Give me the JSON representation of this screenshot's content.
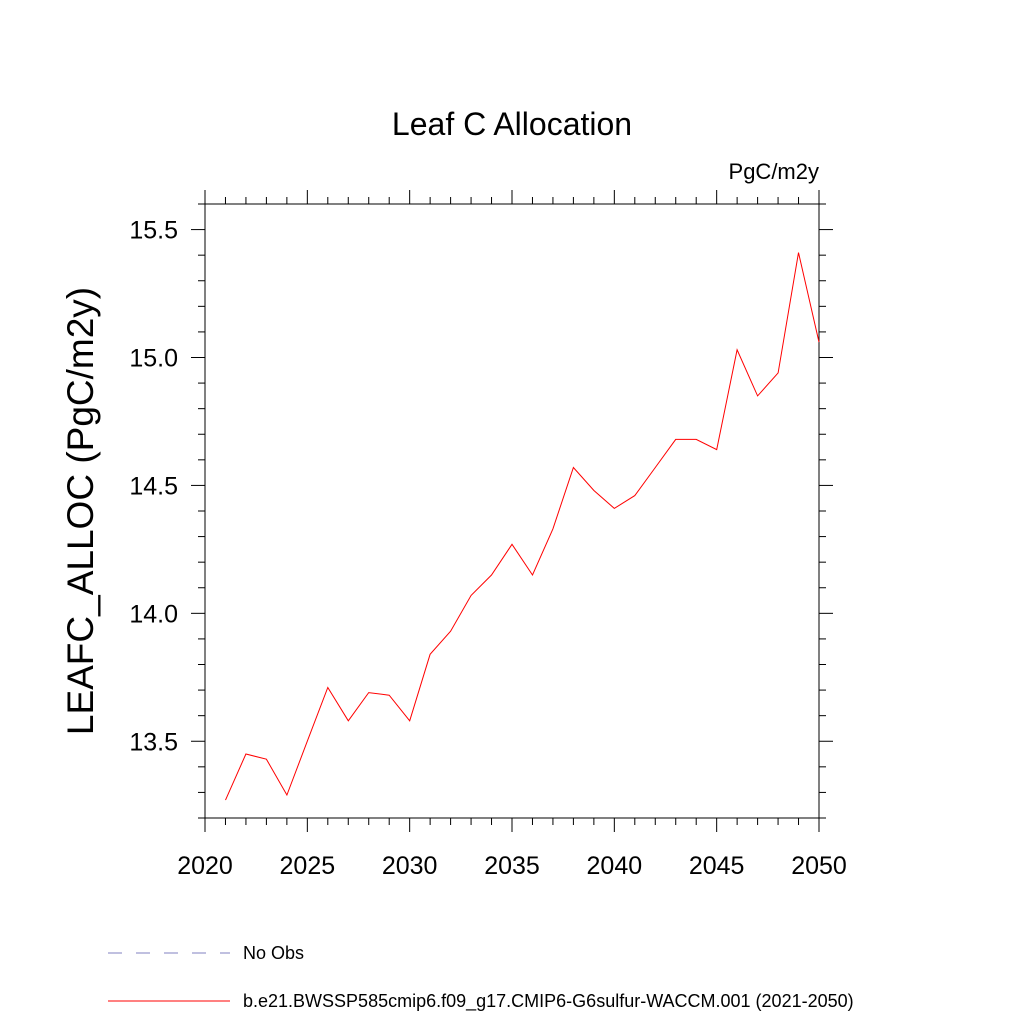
{
  "chart_data": {
    "type": "line",
    "title": "Leaf C Allocation",
    "units": "PgC/m2y",
    "xlabel": "",
    "ylabel": "LEAFC_ALLOC  (PgC/m2y)",
    "xlim": [
      2020,
      2050
    ],
    "ylim": [
      13.2,
      15.6
    ],
    "xticks": [
      2020,
      2025,
      2030,
      2035,
      2040,
      2045,
      2050
    ],
    "yticks": [
      13.5,
      14.0,
      14.5,
      15.0,
      15.5
    ],
    "ytick_labels": [
      "13.5",
      "14.0",
      "14.5",
      "15.0",
      "15.5"
    ],
    "grid": false,
    "series": [
      {
        "name": "b.e21.BWSSP585cmip6.f09_g17.CMIP6-G6sulfur-WACCM.001 (2021-2050)",
        "color": "#ff0000",
        "x": [
          2021,
          2022,
          2023,
          2024,
          2025,
          2026,
          2027,
          2028,
          2029,
          2030,
          2031,
          2032,
          2033,
          2034,
          2035,
          2036,
          2037,
          2038,
          2039,
          2040,
          2041,
          2042,
          2043,
          2044,
          2045,
          2046,
          2047,
          2048,
          2049,
          2050
        ],
        "y": [
          13.27,
          13.45,
          13.43,
          13.29,
          13.5,
          13.71,
          13.58,
          13.69,
          13.68,
          13.58,
          13.84,
          13.93,
          14.07,
          14.15,
          14.27,
          14.15,
          14.33,
          14.57,
          14.48,
          14.41,
          14.46,
          14.57,
          14.68,
          14.68,
          14.64,
          15.03,
          14.85,
          14.94,
          15.41,
          15.06
        ]
      }
    ],
    "legend": [
      {
        "label": "No Obs",
        "style": "dashed",
        "color": "#8080c0"
      },
      {
        "label": "b.e21.BWSSP585cmip6.f09_g17.CMIP6-G6sulfur-WACCM.001 (2021-2050)",
        "style": "solid",
        "color": "#ff0000"
      }
    ]
  }
}
